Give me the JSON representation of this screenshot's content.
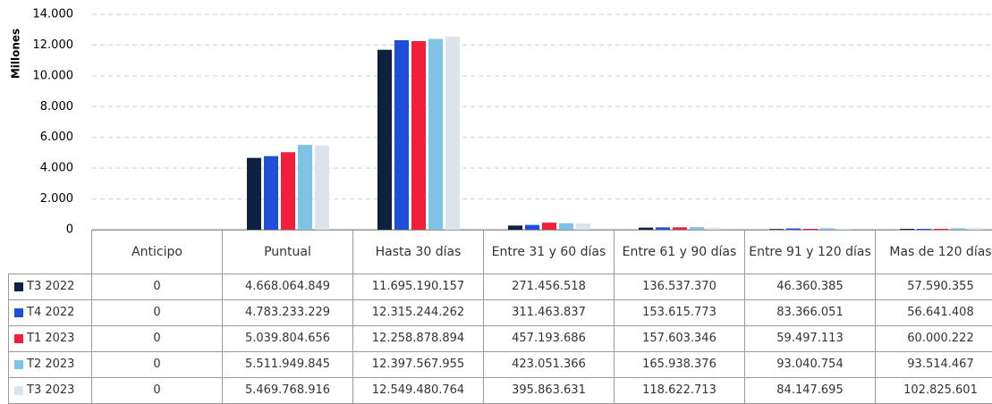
{
  "chart_data": {
    "type": "bar",
    "y_label": "Millones",
    "categories": [
      "Anticipo",
      "Puntual",
      "Hasta 30 días",
      "Entre 31 y 60 días",
      "Entre 61 y 90 días",
      "Entre 91 y 120 días",
      "Mas de 120 días"
    ],
    "series": [
      {
        "name": "T3 2022",
        "color": "#0d2240",
        "values": [
          0,
          4668.064849,
          11695.190157,
          271.456518,
          136.53737,
          46.360385,
          57.590355
        ],
        "value_labels": [
          "0",
          "4.668.064.849",
          "11.695.190.157",
          "271.456.518",
          "136.537.370",
          "46.360.385",
          "57.590.355"
        ]
      },
      {
        "name": "T4 2022",
        "color": "#1f4fd8",
        "values": [
          0,
          4783.233229,
          12315.244262,
          311.463837,
          153.615773,
          83.366051,
          56.641408
        ],
        "value_labels": [
          "0",
          "4.783.233.229",
          "12.315.244.262",
          "311.463.837",
          "153.615.773",
          "83.366.051",
          "56.641.408"
        ]
      },
      {
        "name": "T1 2023",
        "color": "#f0203a",
        "values": [
          0,
          5039.804656,
          12258.878894,
          457.193686,
          157.603346,
          59.497113,
          60.000222
        ],
        "value_labels": [
          "0",
          "5.039.804.656",
          "12.258.878.894",
          "457.193.686",
          "157.603.346",
          "59.497.113",
          "60.000.222"
        ]
      },
      {
        "name": "T2 2023",
        "color": "#7ec3e6",
        "values": [
          0,
          5511.949845,
          12397.567955,
          423.051366,
          165.938376,
          93.040754,
          93.514467
        ],
        "value_labels": [
          "0",
          "5.511.949.845",
          "12.397.567.955",
          "423.051.366",
          "165.938.376",
          "93.040.754",
          "93.514.467"
        ]
      },
      {
        "name": "T3 2023",
        "color": "#dde3ea",
        "values": [
          0,
          5469.768916,
          12549.480764,
          395.863631,
          118.622713,
          84.147695,
          102.825601
        ],
        "value_labels": [
          "0",
          "5.469.768.916",
          "12.549.480.764",
          "395.863.631",
          "118.622.713",
          "84.147.695",
          "102.825.601"
        ]
      }
    ],
    "ylim": [
      0,
      14000
    ],
    "yticks": [
      0,
      {
        "value": 2000,
        "label": "2.000"
      },
      {
        "value": 4000,
        "label": "4.000"
      },
      {
        "value": 6000,
        "label": "6.000"
      },
      {
        "value": 8000,
        "label": "8.000"
      },
      {
        "value": 10000,
        "label": "10.000"
      },
      {
        "value": 12000,
        "label": "12.000"
      },
      {
        "value": 14000,
        "label": "14.000"
      }
    ],
    "grid": true
  }
}
